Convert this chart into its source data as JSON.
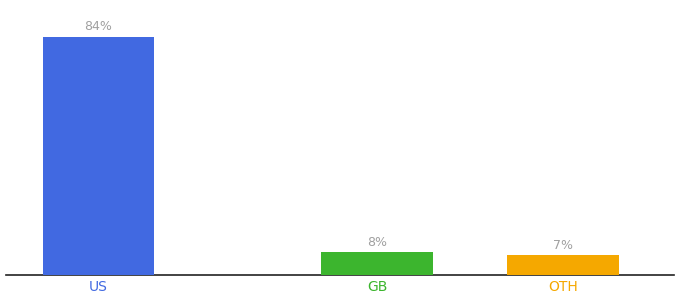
{
  "categories": [
    "US",
    "GB",
    "OTH"
  ],
  "values": [
    84,
    8,
    7
  ],
  "bar_colors": [
    "#4169e1",
    "#3cb52e",
    "#f5a800"
  ],
  "label_color": "#a0a0a0",
  "axis_label_colors": [
    "#4169e1",
    "#3cb52e",
    "#f5a800"
  ],
  "background_color": "#ffffff",
  "ylim": [
    0,
    95
  ],
  "bar_width": 0.6,
  "value_labels": [
    "84%",
    "8%",
    "7%"
  ],
  "font_size_values": 9,
  "font_size_ticks": 10,
  "x_positions": [
    0.5,
    2.0,
    3.0
  ]
}
